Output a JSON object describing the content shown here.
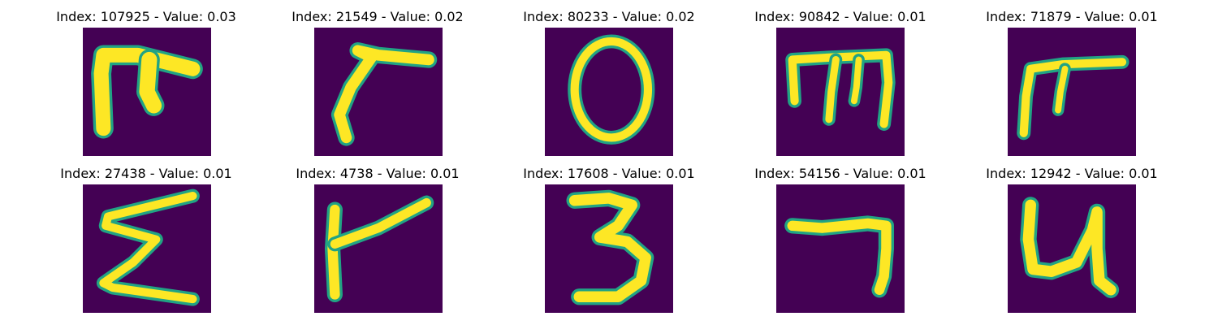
{
  "colors": {
    "background": "#440154",
    "stroke_core": "#fde725",
    "stroke_edge": "#21a384"
  },
  "panels": [
    {
      "title": "Index: 107925 - Value: 0.03",
      "index": 107925,
      "value": 0.03,
      "glyph": "pi-like"
    },
    {
      "title": "Index: 21549 - Value: 0.02",
      "index": 21549,
      "value": 0.02,
      "glyph": "hook-curve"
    },
    {
      "title": "Index: 80233 - Value: 0.02",
      "index": 80233,
      "value": 0.02,
      "glyph": "zero"
    },
    {
      "title": "Index: 90842 - Value: 0.01",
      "index": 90842,
      "value": 0.01,
      "glyph": "m-like"
    },
    {
      "title": "Index: 71879 - Value: 0.01",
      "index": 71879,
      "value": 0.01,
      "glyph": "pi-like"
    },
    {
      "title": "Index: 27438 - Value: 0.01",
      "index": 27438,
      "value": 0.01,
      "glyph": "sigma-like"
    },
    {
      "title": "Index: 4738 - Value: 0.01",
      "index": 4738,
      "value": 0.01,
      "glyph": "upright-with-arm"
    },
    {
      "title": "Index: 17608 - Value: 0.01",
      "index": 17608,
      "value": 0.01,
      "glyph": "three"
    },
    {
      "title": "Index: 54156 - Value: 0.01",
      "index": 54156,
      "value": 0.01,
      "glyph": "seven-like"
    },
    {
      "title": "Index: 12942 - Value: 0.01",
      "index": 12942,
      "value": 0.01,
      "glyph": "n-like"
    }
  ]
}
